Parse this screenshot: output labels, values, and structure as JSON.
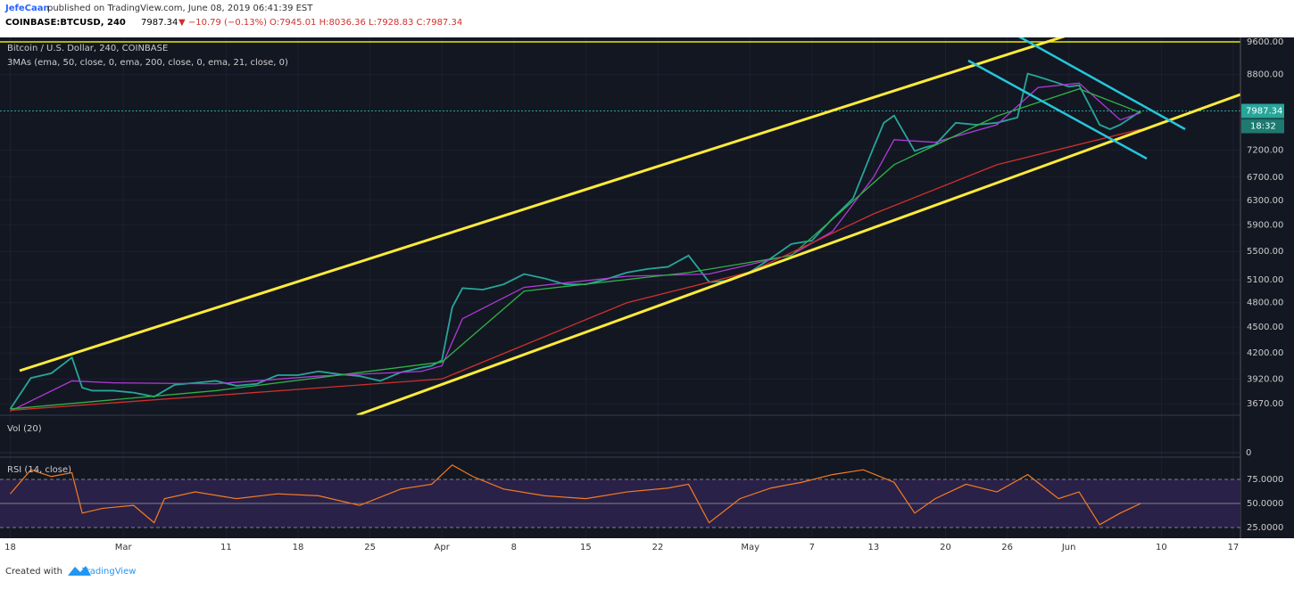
{
  "header": {
    "author": "JefeCaan",
    "published": "published on TradingView.com, June 08, 2019 06:41:39 EST",
    "symbol": "COINBASE:BTCUSD, 240",
    "last": "7987.34",
    "change": "▼ −10.79 (−0.13%)",
    "ohlc": "O:7945.01 H:8036.36 L:7928.83 C:7987.34"
  },
  "legend": {
    "series_title": "Bitcoin / U.S. Dollar, 240, COINBASE",
    "ma_title": "3MAs (ema, 50, close, 0, ema, 200, close, 0, ema, 21, close, 0)"
  },
  "price_badge": {
    "value": 7987.34,
    "label": "7987.34",
    "countdown": "18:32"
  },
  "chart_data": {
    "type": "line",
    "log_scale": true,
    "x": [
      0,
      2,
      4,
      6,
      7,
      8,
      10,
      12,
      14,
      16,
      18,
      20,
      22,
      24,
      26,
      28,
      30,
      32,
      34,
      36,
      38,
      40,
      41,
      42,
      43,
      44,
      46,
      48,
      50,
      52,
      54,
      56,
      58,
      60,
      62,
      64,
      66,
      68,
      70,
      72,
      74,
      76,
      78,
      79,
      80,
      82,
      84,
      85,
      86,
      88,
      89,
      90,
      92,
      94,
      96,
      98,
      99,
      100,
      102,
      103,
      104,
      106,
      107,
      108,
      109,
      110
    ],
    "series": [
      {
        "name": "Close",
        "color": "#26a69a",
        "values": [
          3620,
          3930,
          3980,
          4150,
          3830,
          3800,
          3800,
          3780,
          3740,
          3860,
          3880,
          3900,
          3850,
          3870,
          3960,
          3960,
          4000,
          3970,
          3950,
          3900,
          3990,
          4040,
          4060,
          4120,
          4740,
          4990,
          4970,
          5040,
          5180,
          5120,
          5040,
          5040,
          5110,
          5200,
          5250,
          5280,
          5440,
          5070,
          5090,
          5210,
          5400,
          5610,
          5660,
          5830,
          6000,
          6330,
          7250,
          7740,
          7890,
          7180,
          7250,
          7300,
          7740,
          7700,
          7740,
          7850,
          8820,
          8750,
          8600,
          8520,
          8550,
          7700,
          7610,
          7700,
          7840,
          7987
        ]
      },
      {
        "name": "EMA 21",
        "color": "#b03ad8",
        "x": [
          0,
          6,
          10,
          20,
          30,
          40,
          42,
          44,
          50,
          60,
          68,
          76,
          80,
          84,
          86,
          90,
          96,
          100,
          104,
          108,
          110
        ],
        "values": [
          3600,
          3900,
          3880,
          3870,
          3950,
          4000,
          4060,
          4600,
          5000,
          5150,
          5180,
          5450,
          5800,
          6700,
          7400,
          7350,
          7700,
          8500,
          8600,
          7800,
          7950
        ]
      },
      {
        "name": "EMA 50",
        "color": "#2fb344",
        "x": [
          0,
          20,
          42,
          50,
          66,
          76,
          86,
          96,
          104,
          110
        ],
        "values": [
          3620,
          3800,
          4100,
          4950,
          5200,
          5440,
          6925,
          7880,
          8470,
          7950
        ]
      },
      {
        "name": "EMA 200",
        "color": "#d0302c",
        "x": [
          0,
          42,
          60,
          72,
          84,
          96,
          110
        ],
        "values": [
          3607,
          3920,
          4800,
          5209,
          6077,
          6925,
          7610
        ]
      }
    ],
    "xlim": [
      -1,
      119.7
    ],
    "xticks": [
      {
        "value": 0,
        "label": "18"
      },
      {
        "value": 11,
        "label": "Mar"
      },
      {
        "value": 21,
        "label": "11"
      },
      {
        "value": 28,
        "label": "18"
      },
      {
        "value": 35,
        "label": "25"
      },
      {
        "value": 42,
        "label": "Apr"
      },
      {
        "value": 49,
        "label": "8"
      },
      {
        "value": 56,
        "label": "15"
      },
      {
        "value": 63,
        "label": "22"
      },
      {
        "value": 72,
        "label": "May"
      },
      {
        "value": 78,
        "label": "7"
      },
      {
        "value": 84,
        "label": "13"
      },
      {
        "value": 91,
        "label": "20"
      },
      {
        "value": 97,
        "label": "26"
      },
      {
        "value": 103,
        "label": "Jun"
      },
      {
        "value": 112,
        "label": "10"
      },
      {
        "value": 119,
        "label": "17"
      }
    ],
    "ylim": [
      3560,
      9710
    ],
    "yticks": [
      {
        "value": 9600,
        "label": "9600.00"
      },
      {
        "value": 8800,
        "label": "8800.00"
      },
      {
        "value": 7200,
        "label": "7200.00"
      },
      {
        "value": 6700,
        "label": "6700.00"
      },
      {
        "value": 6300,
        "label": "6300.00"
      },
      {
        "value": 5900,
        "label": "5900.00"
      },
      {
        "value": 5500,
        "label": "5500.00"
      },
      {
        "value": 5100,
        "label": "5100.00"
      },
      {
        "value": 4800,
        "label": "4800.00"
      },
      {
        "value": 4500,
        "label": "4500.00"
      },
      {
        "value": 4200,
        "label": "4200.00"
      },
      {
        "value": 3920,
        "label": "3920.00"
      },
      {
        "value": 3670,
        "label": "3670.00"
      }
    ]
  },
  "volume": {
    "title": "Vol (20)",
    "ytick": "0"
  },
  "rsi": {
    "title": "RSI (14, close)",
    "color": "#f57c22",
    "x": [
      0,
      2,
      4,
      6,
      7,
      9,
      12,
      14,
      15,
      18,
      22,
      26,
      30,
      34,
      38,
      41,
      43,
      45,
      48,
      52,
      56,
      60,
      64,
      66,
      68,
      71,
      74,
      77,
      80,
      83,
      86,
      88,
      90,
      93,
      96,
      99,
      102,
      104,
      106,
      108,
      110
    ],
    "values": [
      60,
      85,
      78,
      82,
      40,
      45,
      48,
      30,
      55,
      62,
      55,
      60,
      58,
      48,
      65,
      70,
      90,
      78,
      65,
      58,
      55,
      62,
      66,
      70,
      30,
      55,
      66,
      72,
      80,
      85,
      72,
      40,
      55,
      70,
      62,
      80,
      55,
      62,
      28,
      40,
      50
    ],
    "ylim": [
      17.6,
      96.3
    ],
    "yticks": [
      {
        "value": 75,
        "label": "75.0000"
      },
      {
        "value": 50,
        "label": "50.0000"
      },
      {
        "value": 25,
        "label": "25.0000"
      }
    ]
  },
  "footer": {
    "created": "Created with",
    "brand": "TradingView"
  }
}
